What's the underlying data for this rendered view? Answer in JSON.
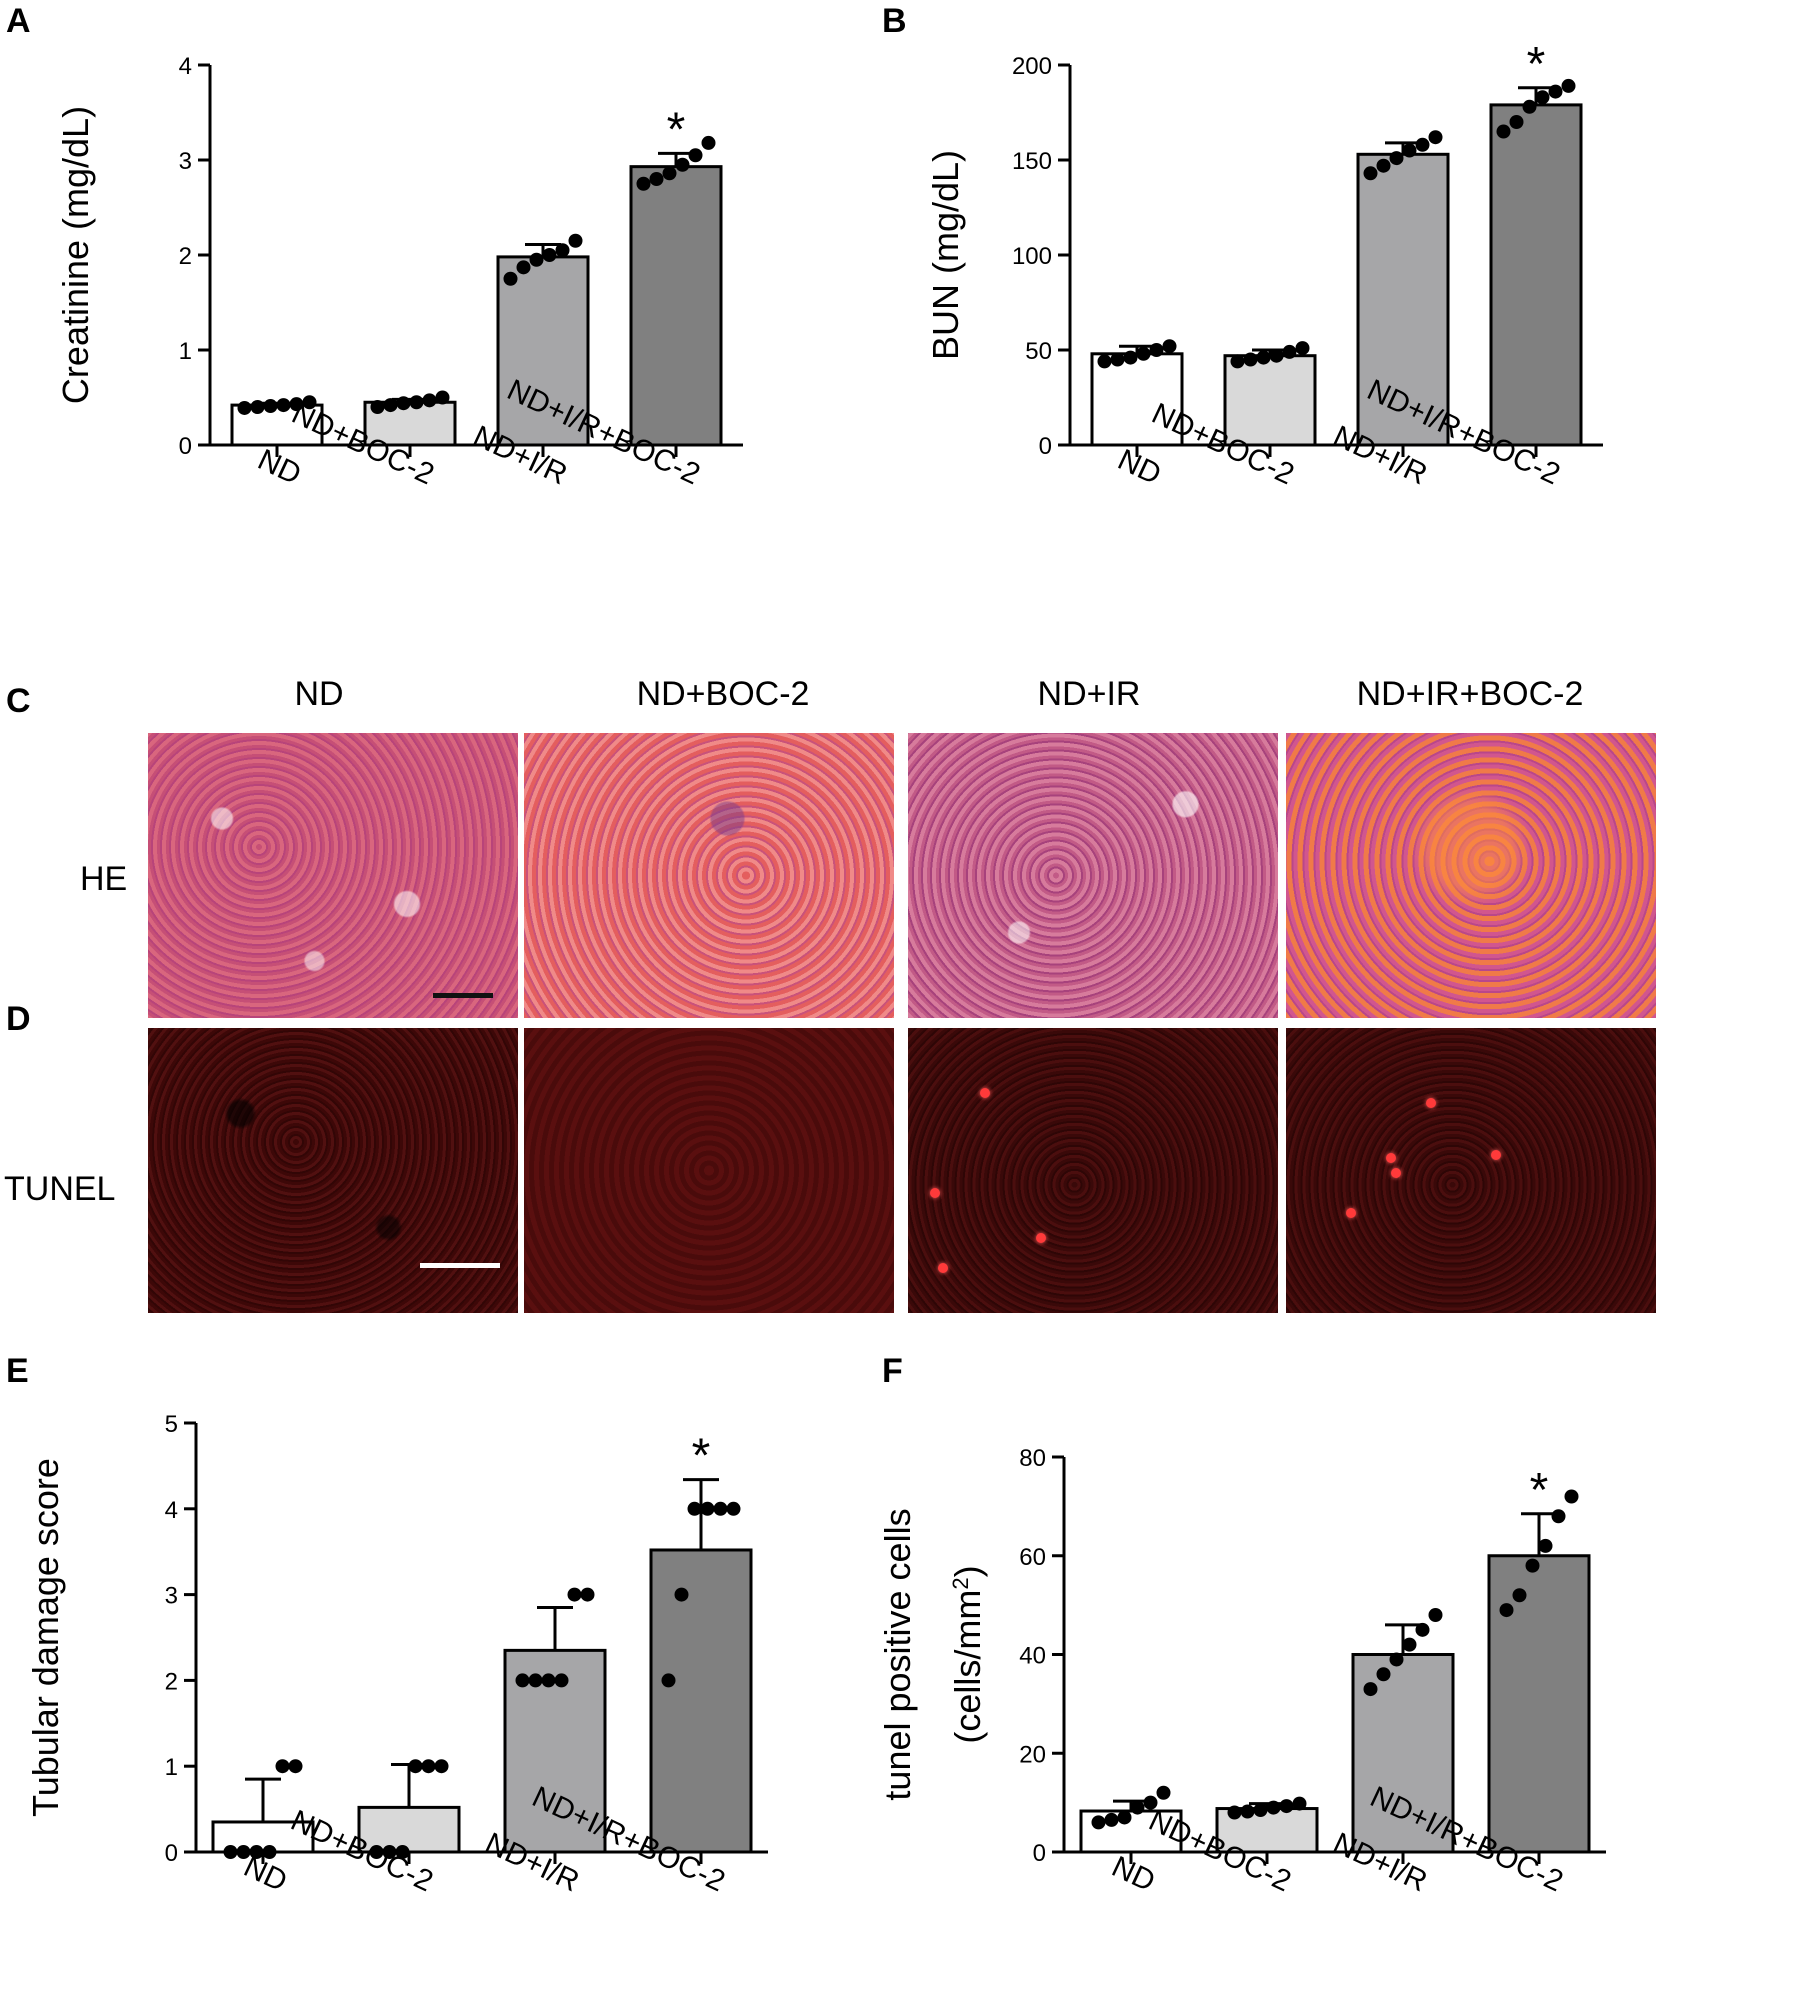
{
  "panels": {
    "A": "A",
    "B": "B",
    "C": "C",
    "D": "D",
    "E": "E",
    "F": "F"
  },
  "micro": {
    "columns": [
      "ND",
      "ND+BOC-2",
      "ND+IR",
      "ND+IR+BOC-2"
    ],
    "rows": [
      "HE",
      "TUNEL"
    ]
  },
  "colors": {
    "bar_fills": [
      "#ffffff",
      "#d9d9d9",
      "#a6a6a8",
      "#808080"
    ],
    "he_scalebar": "#111111",
    "tunel_scalebar": "#ffffff"
  },
  "chart_data": [
    {
      "id": "A",
      "type": "bar",
      "categories": [
        "ND",
        "ND+BOC-2",
        "ND+I/R",
        "ND+I/R+BOC-2"
      ],
      "values": [
        0.42,
        0.45,
        1.98,
        2.93
      ],
      "errors": [
        0.02,
        0.03,
        0.13,
        0.14
      ],
      "points": [
        [
          0.39,
          0.4,
          0.41,
          0.42,
          0.43,
          0.45
        ],
        [
          0.4,
          0.42,
          0.44,
          0.45,
          0.47,
          0.5
        ],
        [
          1.75,
          1.87,
          1.95,
          2.0,
          2.05,
          2.15
        ],
        [
          2.75,
          2.8,
          2.86,
          2.95,
          3.05,
          3.18
        ]
      ],
      "significance": [
        "",
        "",
        "",
        "*"
      ],
      "ylabel": "Creatinine (mg/dL)",
      "ylim": [
        0,
        4
      ],
      "yticks": [
        "0",
        "1",
        "2",
        "3",
        "4"
      ]
    },
    {
      "id": "B",
      "type": "bar",
      "categories": [
        "ND",
        "ND+BOC-2",
        "ND+I/R",
        "ND+I/R+BOC-2"
      ],
      "values": [
        48,
        47,
        153,
        179
      ],
      "errors": [
        4,
        3,
        6,
        9
      ],
      "points": [
        [
          44,
          45,
          46,
          48,
          50,
          52
        ],
        [
          44,
          45,
          46,
          47,
          49,
          51
        ],
        [
          143,
          147,
          151,
          155,
          158,
          162
        ],
        [
          165,
          170,
          178,
          183,
          186,
          189
        ]
      ],
      "significance": [
        "",
        "",
        "",
        "*"
      ],
      "ylabel": "BUN (mg/dL)",
      "ylim": [
        0,
        200
      ],
      "yticks": [
        "0",
        "50",
        "100",
        "150",
        "200"
      ]
    },
    {
      "id": "E",
      "type": "bar",
      "categories": [
        "ND",
        "ND+BOC-2",
        "ND+I/R",
        "ND+I/R+BOC-2"
      ],
      "values": [
        0.35,
        0.52,
        2.35,
        3.52
      ],
      "errors": [
        0.5,
        0.5,
        0.5,
        0.82
      ],
      "points": [
        [
          0,
          0,
          0,
          0,
          1,
          1
        ],
        [
          0,
          0,
          0,
          1,
          1,
          1
        ],
        [
          2,
          2,
          2,
          2,
          3,
          3
        ],
        [
          2,
          3,
          4,
          4,
          4,
          4
        ]
      ],
      "significance": [
        "",
        "",
        "",
        "*"
      ],
      "ylabel": "Tubular damage score",
      "ylim": [
        0,
        5
      ],
      "yticks": [
        "0",
        "1",
        "2",
        "3",
        "4",
        "5"
      ]
    },
    {
      "id": "F",
      "type": "bar",
      "categories": [
        "ND",
        "ND+BOC-2",
        "ND+I/R",
        "ND+I/R+BOC-2"
      ],
      "values": [
        8.3,
        8.8,
        40,
        60
      ],
      "errors": [
        2,
        1,
        6,
        8.5
      ],
      "points": [
        [
          6,
          6.5,
          7,
          9,
          10,
          12
        ],
        [
          8,
          8.2,
          8.5,
          9,
          9.3,
          9.8
        ],
        [
          33,
          36,
          39,
          42,
          45,
          48
        ],
        [
          49,
          52,
          58,
          62,
          68,
          72
        ]
      ],
      "significance": [
        "",
        "",
        "",
        "*"
      ],
      "ylabel": "tunel positive cells",
      "ylabel2_main": "(cells/mm",
      "ylabel2_sup": "2",
      "ylabel2_close": ")",
      "ylim": [
        0,
        80
      ],
      "yticks": [
        "0",
        "20",
        "40",
        "60",
        "80"
      ]
    }
  ]
}
